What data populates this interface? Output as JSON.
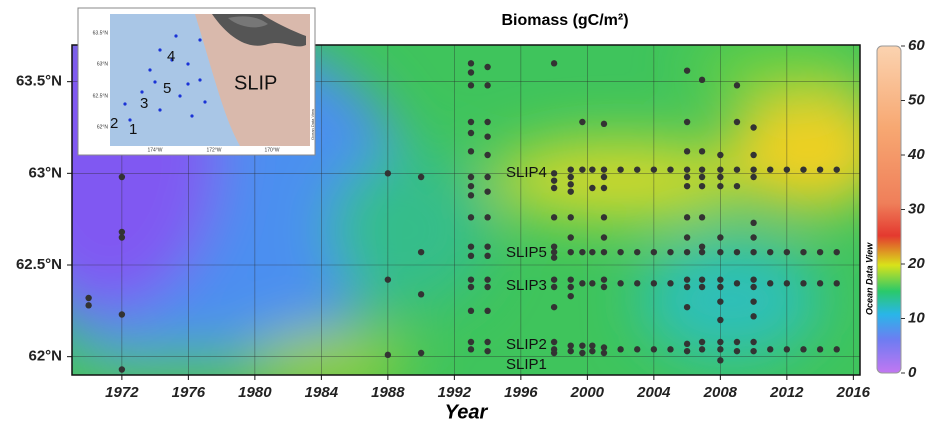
{
  "chart_data": {
    "type": "scatter",
    "title": "Biomass (gC/m²)",
    "x_label": "Year",
    "watermark": "Ocean Data View",
    "xlim": [
      1969,
      2016.4
    ],
    "xticks": [
      1972,
      1976,
      1980,
      1984,
      1988,
      1992,
      1996,
      2000,
      2004,
      2008,
      2012,
      2016
    ],
    "ylim": [
      61.9,
      63.7
    ],
    "yticks": [
      {
        "value": 62,
        "label": "62°N"
      },
      {
        "value": 62.5,
        "label": "62.5°N"
      },
      {
        "value": 63,
        "label": "63°N"
      },
      {
        "value": 63.5,
        "label": "63.5°N"
      }
    ],
    "grid": true,
    "point_color": "#333333",
    "clim": [
      0,
      60
    ],
    "cticks": [
      0,
      10,
      20,
      30,
      40,
      50,
      60
    ],
    "annotations": [
      "SLIP4",
      "SLIP5",
      "SLIP3",
      "SLIP2",
      "SLIP1"
    ],
    "columns": [
      {
        "x": 1970,
        "y": [
          62.32,
          62.28
        ]
      },
      {
        "x": 1972,
        "y": [
          62.98,
          62.68,
          62.65,
          62.23,
          61.93
        ]
      },
      {
        "x": 1988,
        "y": [
          63.0,
          62.42,
          62.01
        ]
      },
      {
        "x": 1990,
        "y": [
          62.98,
          62.57,
          62.34,
          62.02
        ]
      },
      {
        "x": 1993,
        "y": [
          63.6,
          63.55,
          63.48,
          63.28,
          63.22,
          63.12,
          62.98,
          62.93,
          62.88,
          62.76,
          62.6,
          62.55,
          62.42,
          62.38,
          62.25,
          62.08,
          62.04
        ]
      },
      {
        "x": 1994,
        "y": [
          63.58,
          63.48,
          63.28,
          63.2,
          63.1,
          62.98,
          62.9,
          62.76,
          62.6,
          62.55,
          62.42,
          62.38,
          62.25,
          62.08,
          62.03
        ]
      },
      {
        "x": 1998,
        "y": [
          63.6,
          63.0,
          62.96,
          62.92,
          62.76,
          62.6,
          62.57,
          62.54,
          62.42,
          62.38,
          62.27,
          62.08,
          62.04,
          62.02
        ]
      },
      {
        "x": 1999,
        "y": [
          63.02,
          62.98,
          62.94,
          62.9,
          62.76,
          62.65,
          62.57,
          62.42,
          62.38,
          62.33,
          62.06,
          62.03
        ]
      },
      {
        "x": 1999.7,
        "y": [
          63.28,
          63.02,
          62.57,
          62.4,
          62.06,
          62.02
        ]
      },
      {
        "x": 2000.3,
        "y": [
          63.02,
          62.92,
          62.57,
          62.4,
          62.06,
          62.03
        ]
      },
      {
        "x": 2001,
        "y": [
          63.27,
          63.02,
          62.98,
          62.92,
          62.76,
          62.65,
          62.57,
          62.42,
          62.38,
          62.05,
          62.02
        ]
      },
      {
        "x": 2002,
        "y": [
          63.02,
          62.57,
          62.4,
          62.04
        ]
      },
      {
        "x": 2003,
        "y": [
          63.02,
          62.57,
          62.4,
          62.04
        ]
      },
      {
        "x": 2004,
        "y": [
          63.02,
          62.57,
          62.4,
          62.04
        ]
      },
      {
        "x": 2005,
        "y": [
          63.02,
          62.57,
          62.4,
          62.04
        ]
      },
      {
        "x": 2006,
        "y": [
          63.56,
          63.28,
          63.12,
          63.02,
          62.98,
          62.93,
          62.76,
          62.65,
          62.57,
          62.42,
          62.38,
          62.27,
          62.07,
          62.03
        ]
      },
      {
        "x": 2006.9,
        "y": [
          63.51,
          63.12,
          63.02,
          62.98,
          62.93,
          62.76,
          62.6,
          62.57,
          62.42,
          62.38,
          62.08,
          62.04
        ]
      },
      {
        "x": 2008,
        "y": [
          63.1,
          63.02,
          62.98,
          62.93,
          62.65,
          62.57,
          62.42,
          62.38,
          62.3,
          62.2,
          62.08,
          62.04,
          61.98
        ]
      },
      {
        "x": 2009,
        "y": [
          63.48,
          63.28,
          63.02,
          62.93,
          62.57,
          62.4,
          62.08,
          62.03
        ]
      },
      {
        "x": 2010,
        "y": [
          63.25,
          63.1,
          63.02,
          62.98,
          62.73,
          62.65,
          62.57,
          62.42,
          62.38,
          62.3,
          62.22,
          62.08,
          62.03
        ]
      },
      {
        "x": 2011,
        "y": [
          63.02,
          62.57,
          62.4,
          62.04
        ]
      },
      {
        "x": 2012,
        "y": [
          63.02,
          62.57,
          62.4,
          62.04
        ]
      },
      {
        "x": 2013,
        "y": [
          63.02,
          62.57,
          62.4,
          62.04
        ]
      },
      {
        "x": 2014,
        "y": [
          63.02,
          62.57,
          62.4,
          62.04
        ]
      },
      {
        "x": 2015,
        "y": [
          63.02,
          62.57,
          62.4,
          62.04
        ]
      }
    ],
    "inset": {
      "lat_labels": [
        "63.5°N",
        "63°N",
        "62.5°N",
        "62°N"
      ],
      "lon_labels": [
        "174°W",
        "172°W",
        "170°W"
      ],
      "sites": [
        "1",
        "2",
        "3",
        "4",
        "5"
      ],
      "label": "SLIP",
      "credit": "Ocean Data View"
    }
  }
}
